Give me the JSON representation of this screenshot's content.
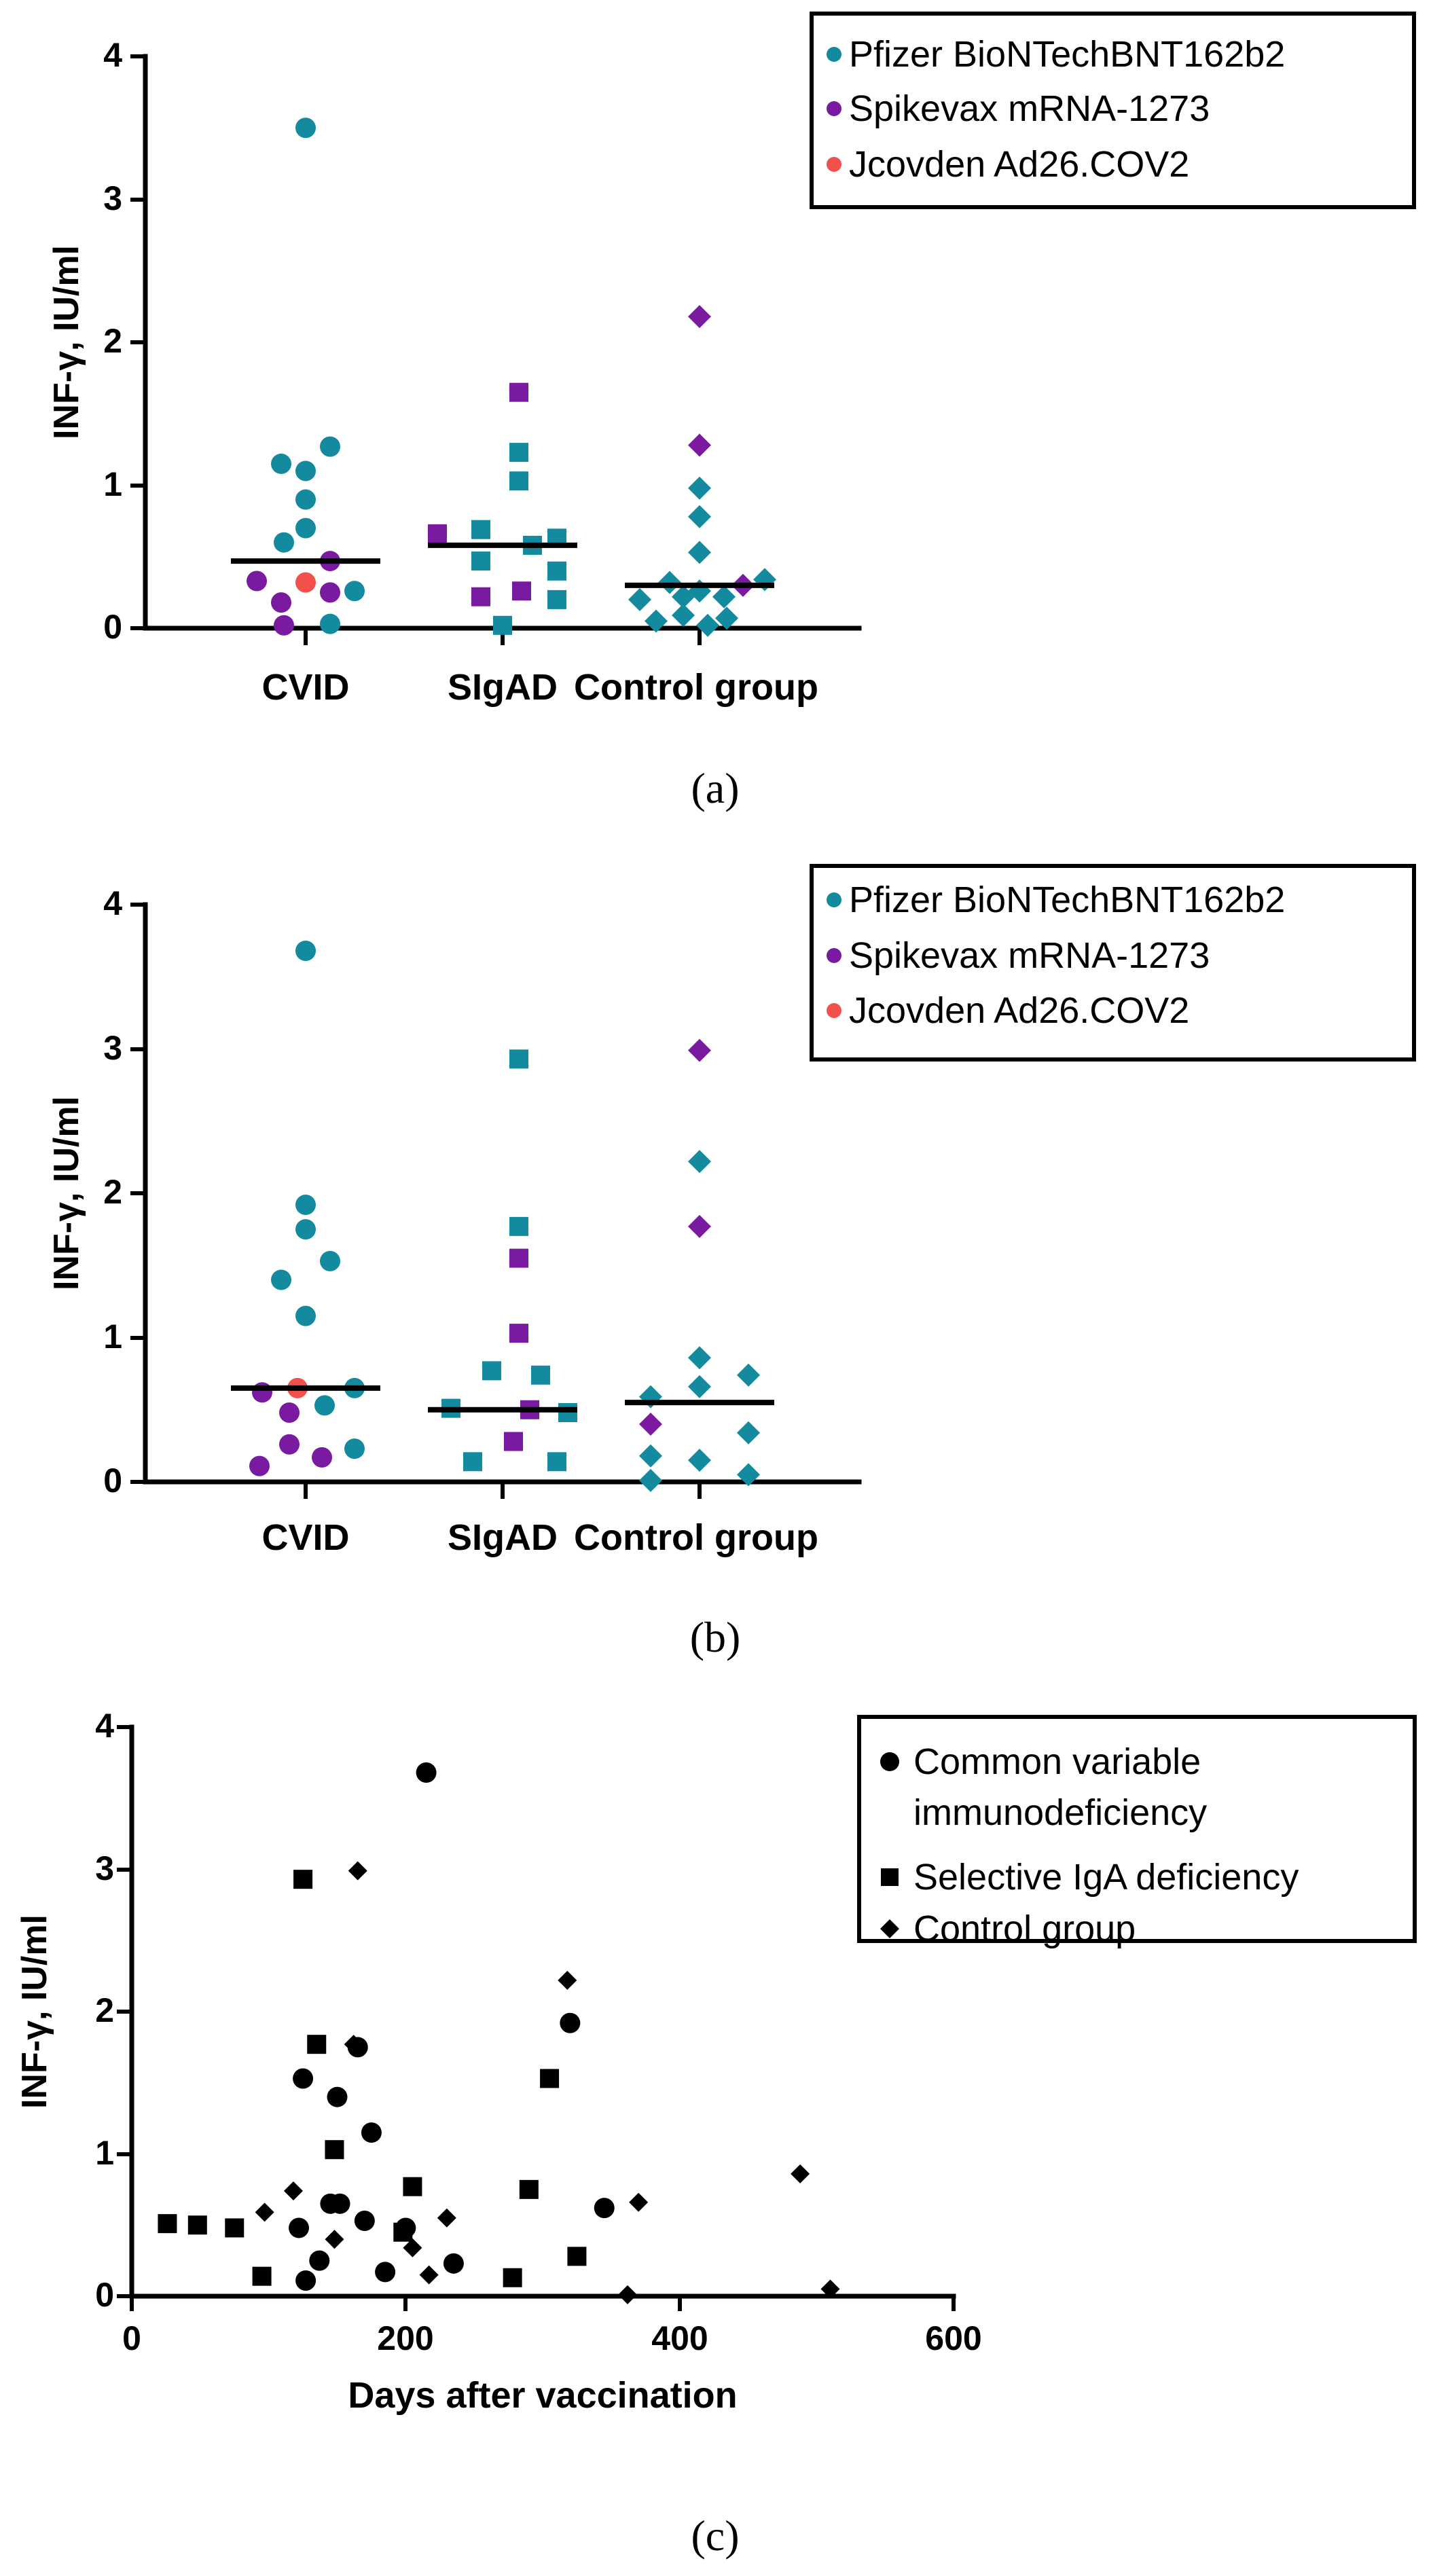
{
  "colors": {
    "pfizer": "#138a9e",
    "spikevax": "#7a1aa0",
    "jcovden": "#f2514b",
    "black": "#000000"
  },
  "chart_data": [
    {
      "id": "a",
      "type": "scatter",
      "panel_label": "(a)",
      "ylabel": "INF-γ, IU/ml",
      "ylim": [
        0,
        4
      ],
      "yticks": [
        "0",
        "1",
        "2",
        "3",
        "4"
      ],
      "categories": [
        "CVID",
        "SIgAD",
        "Control group"
      ],
      "legend": [
        "Pfizer BioNTechBNT162b2",
        "Spikevax mRNA-1273",
        "Jcovden Ad26.COV2"
      ],
      "medians": [
        0.47,
        0.58,
        0.3
      ],
      "points": [
        [
          {
            "v": 3.5,
            "s": "pfizer",
            "o": 0
          },
          {
            "v": 1.27,
            "s": "pfizer",
            "o": 0.9
          },
          {
            "v": 1.15,
            "s": "pfizer",
            "o": -0.9
          },
          {
            "v": 1.1,
            "s": "pfizer",
            "o": 0
          },
          {
            "v": 0.9,
            "s": "pfizer",
            "o": 0
          },
          {
            "v": 0.7,
            "s": "pfizer",
            "o": 0
          },
          {
            "v": 0.6,
            "s": "pfizer",
            "o": -0.8
          },
          {
            "v": 0.47,
            "s": "spikevax",
            "o": 0.9
          },
          {
            "v": 0.33,
            "s": "spikevax",
            "o": -1.8
          },
          {
            "v": 0.32,
            "s": "jcovden",
            "o": 0
          },
          {
            "v": 0.26,
            "s": "pfizer",
            "o": 1.8
          },
          {
            "v": 0.25,
            "s": "spikevax",
            "o": 0.9
          },
          {
            "v": 0.18,
            "s": "spikevax",
            "o": -0.9
          },
          {
            "v": 0.02,
            "s": "spikevax",
            "o": -0.8
          },
          {
            "v": 0.03,
            "s": "pfizer",
            "o": 0.9
          }
        ],
        [
          {
            "v": 1.65,
            "s": "spikevax",
            "o": 0.6
          },
          {
            "v": 1.23,
            "s": "pfizer",
            "o": 0.6
          },
          {
            "v": 1.03,
            "s": "pfizer",
            "o": 0.6
          },
          {
            "v": 0.69,
            "s": "pfizer",
            "o": -0.8
          },
          {
            "v": 0.66,
            "s": "spikevax",
            "o": -2.4
          },
          {
            "v": 0.63,
            "s": "pfizer",
            "o": 2.0
          },
          {
            "v": 0.58,
            "s": "pfizer",
            "o": 1.1
          },
          {
            "v": 0.47,
            "s": "pfizer",
            "o": -0.8
          },
          {
            "v": 0.4,
            "s": "pfizer",
            "o": 2.0
          },
          {
            "v": 0.26,
            "s": "spikevax",
            "o": 0.7
          },
          {
            "v": 0.22,
            "s": "spikevax",
            "o": -0.8
          },
          {
            "v": 0.2,
            "s": "pfizer",
            "o": 2.0
          },
          {
            "v": 0.02,
            "s": "pfizer",
            "o": 0.0
          }
        ],
        [
          {
            "v": 2.18,
            "s": "spikevax",
            "o": 0
          },
          {
            "v": 1.28,
            "s": "spikevax",
            "o": 0
          },
          {
            "v": 0.98,
            "s": "pfizer",
            "o": 0
          },
          {
            "v": 0.78,
            "s": "pfizer",
            "o": 0
          },
          {
            "v": 0.53,
            "s": "pfizer",
            "o": 0
          },
          {
            "v": 0.34,
            "s": "pfizer",
            "o": 2.4
          },
          {
            "v": 0.32,
            "s": "pfizer",
            "o": -1.1
          },
          {
            "v": 0.3,
            "s": "spikevax",
            "o": 1.6
          },
          {
            "v": 0.26,
            "s": "pfizer",
            "o": 0
          },
          {
            "v": 0.22,
            "s": "pfizer",
            "o": -0.6
          },
          {
            "v": 0.2,
            "s": "pfizer",
            "o": -2.2
          },
          {
            "v": 0.22,
            "s": "pfizer",
            "o": 0.9
          },
          {
            "v": 0.09,
            "s": "pfizer",
            "o": -0.6
          },
          {
            "v": 0.07,
            "s": "pfizer",
            "o": 1.0
          },
          {
            "v": 0.05,
            "s": "pfizer",
            "o": -1.6
          },
          {
            "v": 0.02,
            "s": "pfizer",
            "o": 0.3
          }
        ]
      ]
    },
    {
      "id": "b",
      "type": "scatter",
      "panel_label": "(b)",
      "ylabel": "INF-γ, IU/ml",
      "ylim": [
        0,
        4
      ],
      "yticks": [
        "0",
        "1",
        "2",
        "3",
        "4"
      ],
      "categories": [
        "CVID",
        "SIgAD",
        "Control group"
      ],
      "legend": [
        "Pfizer BioNTechBNT162b2",
        "Spikevax mRNA-1273",
        "Jcovden Ad26.COV2"
      ],
      "medians": [
        0.65,
        0.5,
        0.55
      ],
      "points": [
        [
          {
            "v": 3.68,
            "s": "pfizer",
            "o": 0
          },
          {
            "v": 1.92,
            "s": "pfizer",
            "o": 0
          },
          {
            "v": 1.75,
            "s": "pfizer",
            "o": 0
          },
          {
            "v": 1.53,
            "s": "pfizer",
            "o": 0.9
          },
          {
            "v": 1.4,
            "s": "pfizer",
            "o": -0.9
          },
          {
            "v": 1.15,
            "s": "pfizer",
            "o": 0
          },
          {
            "v": 0.65,
            "s": "jcovden",
            "o": -0.3
          },
          {
            "v": 0.65,
            "s": "pfizer",
            "o": 1.8
          },
          {
            "v": 0.62,
            "s": "spikevax",
            "o": -1.6
          },
          {
            "v": 0.53,
            "s": "pfizer",
            "o": 0.7
          },
          {
            "v": 0.48,
            "s": "spikevax",
            "o": -0.6
          },
          {
            "v": 0.26,
            "s": "spikevax",
            "o": -0.6
          },
          {
            "v": 0.23,
            "s": "pfizer",
            "o": 1.8
          },
          {
            "v": 0.17,
            "s": "spikevax",
            "o": 0.6
          },
          {
            "v": 0.11,
            "s": "spikevax",
            "o": -1.7
          }
        ],
        [
          {
            "v": 2.93,
            "s": "pfizer",
            "o": 0.6
          },
          {
            "v": 1.77,
            "s": "pfizer",
            "o": 0.6
          },
          {
            "v": 1.55,
            "s": "spikevax",
            "o": 0.6
          },
          {
            "v": 1.03,
            "s": "spikevax",
            "o": 0.6
          },
          {
            "v": 0.77,
            "s": "pfizer",
            "o": -0.4
          },
          {
            "v": 0.74,
            "s": "pfizer",
            "o": 1.4
          },
          {
            "v": 0.51,
            "s": "pfizer",
            "o": -1.9
          },
          {
            "v": 0.5,
            "s": "spikevax",
            "o": 1.0
          },
          {
            "v": 0.48,
            "s": "pfizer",
            "o": 2.4
          },
          {
            "v": 0.28,
            "s": "spikevax",
            "o": 0.4
          },
          {
            "v": 0.14,
            "s": "pfizer",
            "o": -1.1
          },
          {
            "v": 0.14,
            "s": "pfizer",
            "o": 2.0
          }
        ],
        [
          {
            "v": 2.99,
            "s": "spikevax",
            "o": 0
          },
          {
            "v": 2.22,
            "s": "pfizer",
            "o": 0
          },
          {
            "v": 1.77,
            "s": "spikevax",
            "o": 0
          },
          {
            "v": 0.86,
            "s": "pfizer",
            "o": 0
          },
          {
            "v": 0.74,
            "s": "pfizer",
            "o": 1.8
          },
          {
            "v": 0.66,
            "s": "pfizer",
            "o": 0
          },
          {
            "v": 0.59,
            "s": "pfizer",
            "o": -1.8
          },
          {
            "v": 0.4,
            "s": "spikevax",
            "o": -1.8
          },
          {
            "v": 0.34,
            "s": "pfizer",
            "o": 1.8
          },
          {
            "v": 0.18,
            "s": "pfizer",
            "o": -1.8
          },
          {
            "v": 0.15,
            "s": "pfizer",
            "o": 0
          },
          {
            "v": 0.05,
            "s": "pfizer",
            "o": 1.8
          },
          {
            "v": 0.01,
            "s": "pfizer",
            "o": -1.8
          }
        ]
      ]
    },
    {
      "id": "c",
      "type": "scatter",
      "panel_label": "(c)",
      "ylabel": "INF-γ, IU/ml",
      "xlabel": "Days after vaccination",
      "xlim": [
        0,
        600
      ],
      "ylim": [
        0,
        4
      ],
      "xticks": [
        "0",
        "200",
        "400",
        "600"
      ],
      "yticks": [
        "0",
        "1",
        "2",
        "3",
        "4"
      ],
      "legend": [
        "Common variable",
        "immunodeficiency",
        "Selective IgA deficiency",
        "Control group"
      ],
      "series": [
        {
          "name": "Common variable immunodeficiency",
          "marker": "circle",
          "points": [
            [
              215,
              3.68
            ],
            [
              320,
              1.92
            ],
            [
              165,
              1.75
            ],
            [
              125,
              1.53
            ],
            [
              150,
              1.4
            ],
            [
              175,
              1.15
            ],
            [
              145,
              0.65
            ],
            [
              152,
              0.65
            ],
            [
              345,
              0.62
            ],
            [
              170,
              0.53
            ],
            [
              200,
              0.48
            ],
            [
              122,
              0.48
            ],
            [
              235,
              0.23
            ],
            [
              185,
              0.17
            ],
            [
              137,
              0.25
            ],
            [
              127,
              0.11
            ]
          ]
        },
        {
          "name": "Selective IgA deficiency",
          "marker": "square",
          "points": [
            [
              125,
              2.93
            ],
            [
              135,
              1.77
            ],
            [
              305,
              1.53
            ],
            [
              148,
              1.03
            ],
            [
              205,
              0.77
            ],
            [
              290,
              0.75
            ],
            [
              26,
              0.51
            ],
            [
              48,
              0.5
            ],
            [
              75,
              0.48
            ],
            [
              198,
              0.45
            ],
            [
              325,
              0.28
            ],
            [
              95,
              0.14
            ],
            [
              278,
              0.13
            ]
          ]
        },
        {
          "name": "Control group",
          "marker": "diamond",
          "points": [
            [
              165,
              2.99
            ],
            [
              318,
              2.22
            ],
            [
              162,
              1.77
            ],
            [
              488,
              0.86
            ],
            [
              118,
              0.74
            ],
            [
              370,
              0.66
            ],
            [
              97,
              0.59
            ],
            [
              230,
              0.55
            ],
            [
              148,
              0.4
            ],
            [
              205,
              0.34
            ],
            [
              217,
              0.15
            ],
            [
              362,
              0.01
            ],
            [
              510,
              0.05
            ]
          ]
        }
      ]
    }
  ]
}
